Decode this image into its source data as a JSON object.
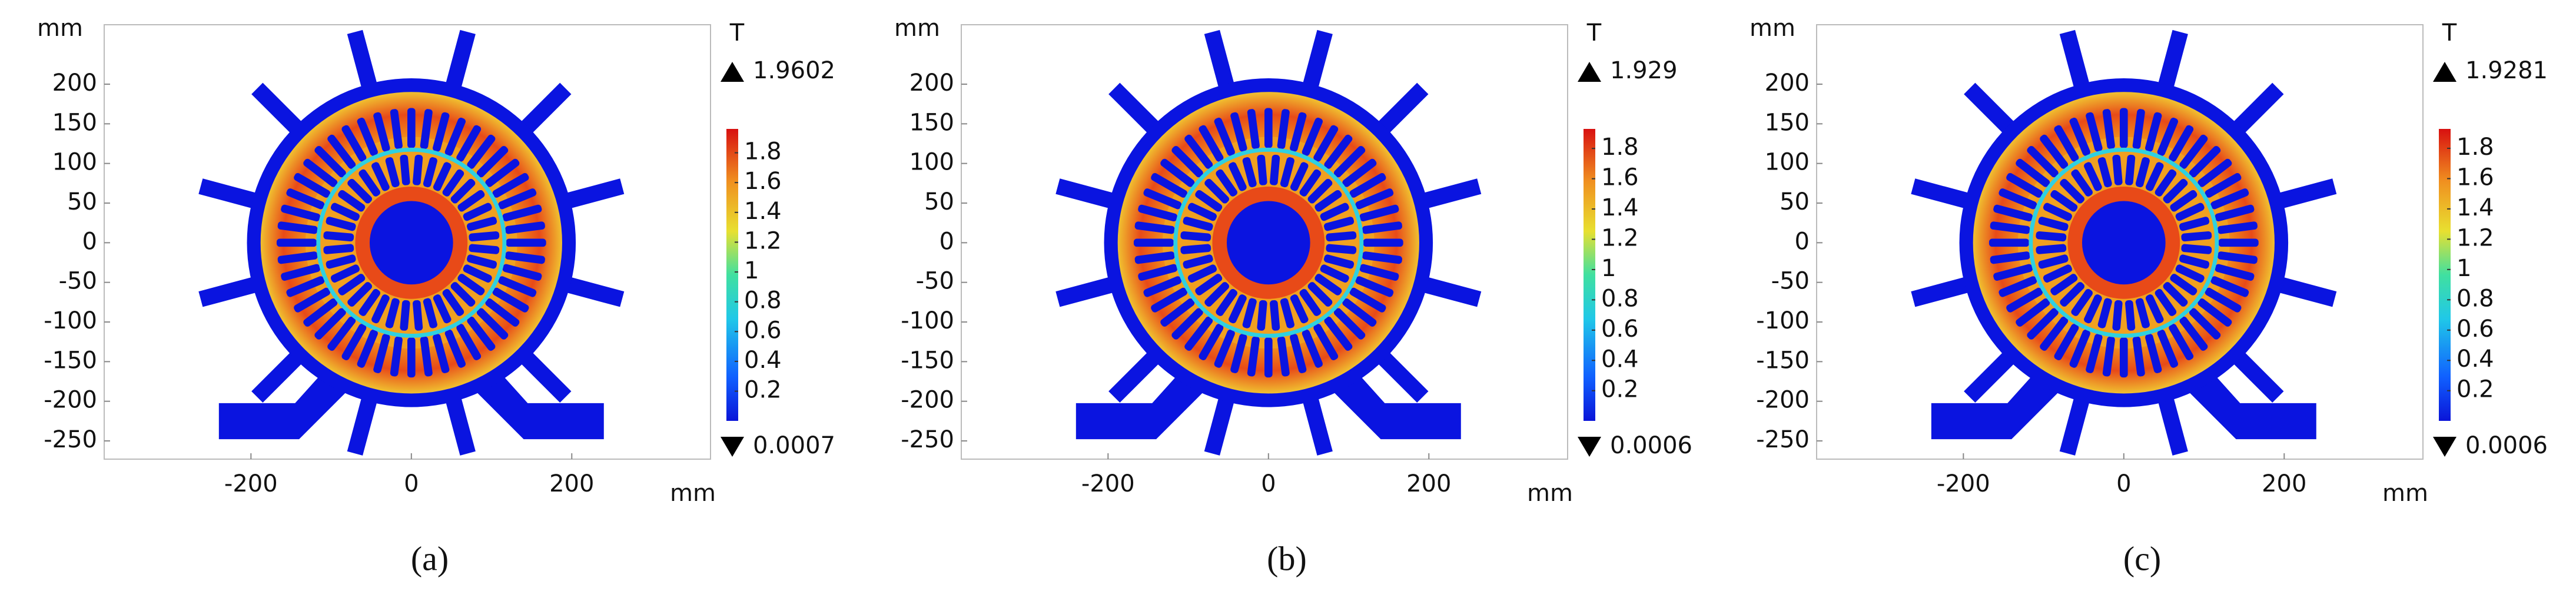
{
  "chart_data": [
    {
      "type": "field",
      "y_label": "mm",
      "x_label": "mm",
      "colorbar_label": "T",
      "caption": "(a)",
      "xlim": [
        -383,
        373
      ],
      "ylim": [
        -273,
        275
      ],
      "xticks": [
        -200,
        0,
        200
      ],
      "yticks": [
        -250,
        -200,
        -150,
        -100,
        -50,
        0,
        50,
        100,
        150,
        200
      ],
      "colorbar_ticks": [
        0.2,
        0.4,
        0.6,
        0.8,
        1,
        1.2,
        1.4,
        1.6,
        1.8
      ],
      "max": 1.9602,
      "min": 0.0007
    },
    {
      "type": "field",
      "y_label": "mm",
      "x_label": "mm",
      "colorbar_label": "T",
      "caption": "(b)",
      "xlim": [
        -383,
        373
      ],
      "ylim": [
        -273,
        275
      ],
      "xticks": [
        -200,
        0,
        200
      ],
      "yticks": [
        -250,
        -200,
        -150,
        -100,
        -50,
        0,
        50,
        100,
        150,
        200
      ],
      "colorbar_ticks": [
        0.2,
        0.4,
        0.6,
        0.8,
        1,
        1.2,
        1.4,
        1.6,
        1.8
      ],
      "max": 1.929,
      "min": 0.0006
    },
    {
      "type": "field",
      "y_label": "mm",
      "x_label": "mm",
      "colorbar_label": "T",
      "caption": "(c)",
      "xlim": [
        -383,
        373
      ],
      "ylim": [
        -273,
        275
      ],
      "xticks": [
        -200,
        0,
        200
      ],
      "yticks": [
        -250,
        -200,
        -150,
        -100,
        -50,
        0,
        50,
        100,
        150,
        200
      ],
      "colorbar_ticks": [
        0.2,
        0.4,
        0.6,
        0.8,
        1,
        1.2,
        1.4,
        1.6,
        1.8
      ],
      "max": 1.9281,
      "min": 0.0006
    }
  ]
}
